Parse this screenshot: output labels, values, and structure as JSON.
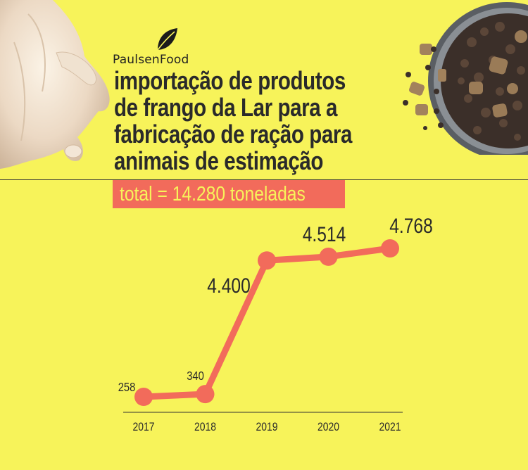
{
  "brand": {
    "name": "PaulsenFood",
    "leaf_icon": "leaf-icon"
  },
  "title_lines": [
    "importação de produtos",
    "de frango da Lar para a",
    "fabricação de ração para",
    "animais de estimação"
  ],
  "total_label": "total = 14.280 toneladas",
  "colors": {
    "background": "#f7f35a",
    "accent": "#f26b5b",
    "text": "#2a2a2a"
  },
  "images": [
    "raw-chicken-image",
    "pet-food-bowl-image"
  ],
  "chart_data": {
    "type": "line",
    "categories": [
      "2017",
      "2018",
      "2019",
      "2020",
      "2021"
    ],
    "values": [
      258,
      340,
      4400,
      4514,
      4768
    ],
    "value_labels": [
      "258",
      "340",
      "4.400",
      "4.514",
      "4.768"
    ],
    "title": "",
    "xlabel": "",
    "ylabel": "",
    "grid": false,
    "legend": "none"
  }
}
